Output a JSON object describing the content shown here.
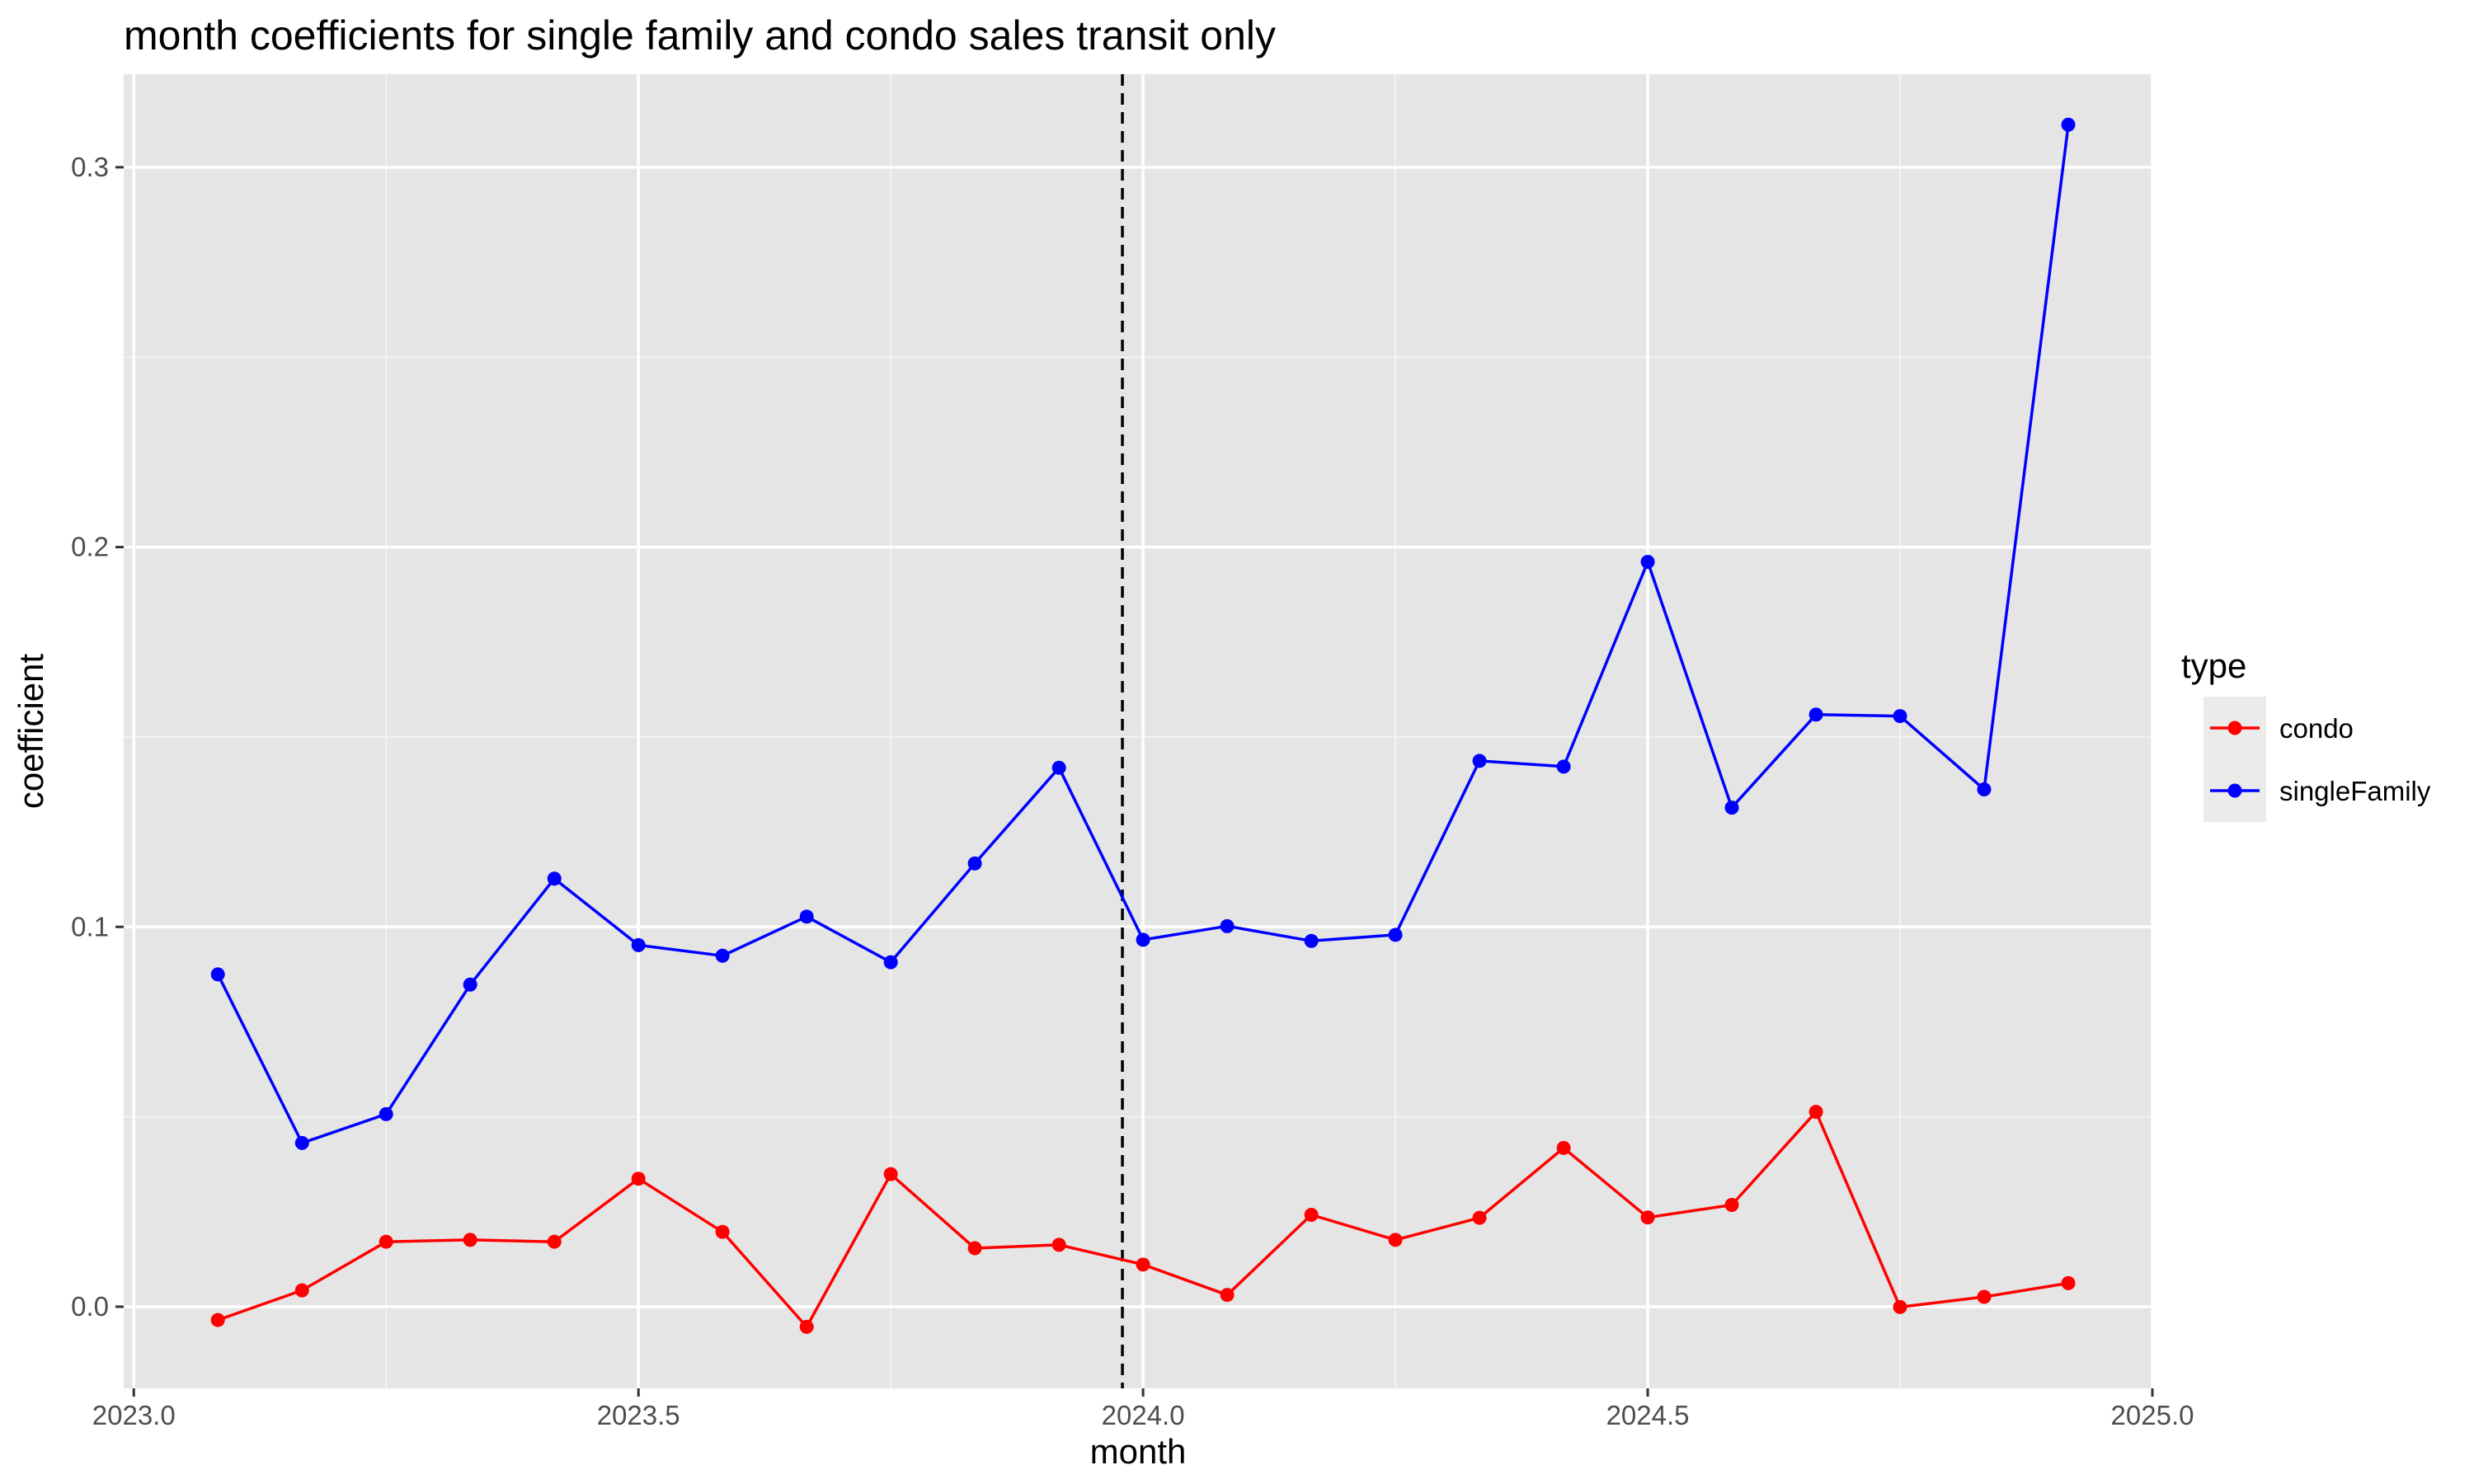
{
  "chart_data": {
    "type": "line",
    "title": "month coefficients for single family and condo sales transit only",
    "xlabel": "month",
    "ylabel": "coefficient",
    "xlim": [
      2022.99,
      2025.0
    ],
    "ylim": [
      -0.0215,
      0.3245
    ],
    "x_ticks": [
      2023.0,
      2023.5,
      2024.0,
      2024.5,
      2025.0
    ],
    "x_tick_labels": [
      "2023.0",
      "2023.5",
      "2024.0",
      "2024.5",
      "2025.0"
    ],
    "y_ticks": [
      0.0,
      0.1,
      0.2,
      0.3
    ],
    "y_tick_labels": [
      "0.0",
      "0.1",
      "0.2",
      "0.3"
    ],
    "grid": true,
    "vline": {
      "x": 2023.9795,
      "style": "dashed",
      "color": "#000000"
    },
    "legend": {
      "title": "type",
      "position": "right"
    },
    "x": [
      2023.0833,
      2023.1667,
      2023.25,
      2023.3333,
      2023.4167,
      2023.5,
      2023.5833,
      2023.6667,
      2023.75,
      2023.8333,
      2023.9167,
      2024.0,
      2024.0833,
      2024.1667,
      2024.25,
      2024.3333,
      2024.4167,
      2024.5,
      2024.5833,
      2024.6667,
      2024.75,
      2024.8333,
      2024.9167
    ],
    "series": [
      {
        "name": "condo",
        "color": "#ff0000",
        "values": [
          -0.0035,
          0.0043,
          0.0171,
          0.0176,
          0.0171,
          0.0337,
          0.0197,
          -0.0053,
          0.0349,
          0.0154,
          0.0163,
          0.0111,
          0.0031,
          0.0242,
          0.0176,
          0.0234,
          0.0418,
          0.0235,
          0.0268,
          0.0513,
          -0.0001,
          0.0026,
          0.0062
        ]
      },
      {
        "name": "singleFamily",
        "color": "#0000ff",
        "values": [
          0.0875,
          0.0431,
          0.0507,
          0.0848,
          0.1127,
          0.0952,
          0.0924,
          0.1027,
          0.0907,
          0.1167,
          0.1419,
          0.0966,
          0.1002,
          0.0963,
          0.0979,
          0.1437,
          0.1422,
          0.1961,
          0.1314,
          0.1559,
          0.1555,
          0.1362,
          0.3112
        ]
      }
    ]
  }
}
